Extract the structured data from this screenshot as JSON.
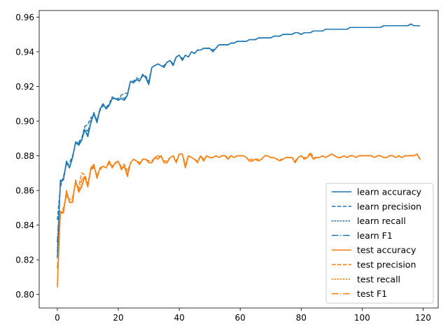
{
  "chart_data": {
    "type": "line",
    "title": "",
    "xlabel": "",
    "ylabel": "",
    "xlim": [
      -5.95,
      124.95
    ],
    "ylim": [
      0.7922,
      0.9638
    ],
    "xticks": [
      0,
      20,
      40,
      60,
      80,
      100,
      120
    ],
    "yticks": [
      0.8,
      0.82,
      0.84,
      0.86,
      0.88,
      0.9,
      0.92,
      0.94,
      0.96
    ],
    "xtick_labels": [
      "0",
      "20",
      "40",
      "60",
      "80",
      "100",
      "120"
    ],
    "ytick_labels": [
      "0.80",
      "0.82",
      "0.84",
      "0.86",
      "0.88",
      "0.90",
      "0.92",
      "0.94",
      "0.96"
    ],
    "grid": false,
    "legend_position": "lower-right",
    "x": [
      0,
      1,
      2,
      3,
      4,
      5,
      6,
      7,
      8,
      9,
      10,
      11,
      12,
      13,
      14,
      15,
      16,
      17,
      18,
      19,
      20,
      21,
      22,
      23,
      24,
      25,
      26,
      27,
      28,
      29,
      30,
      31,
      32,
      33,
      34,
      35,
      36,
      37,
      38,
      39,
      40,
      41,
      42,
      43,
      44,
      45,
      46,
      47,
      48,
      49,
      50,
      51,
      52,
      53,
      54,
      55,
      56,
      57,
      58,
      59,
      60,
      61,
      62,
      63,
      64,
      65,
      66,
      67,
      68,
      69,
      70,
      71,
      72,
      73,
      74,
      75,
      76,
      77,
      78,
      79,
      80,
      81,
      82,
      83,
      84,
      85,
      86,
      87,
      88,
      89,
      90,
      91,
      92,
      93,
      94,
      95,
      96,
      97,
      98,
      99,
      100,
      101,
      102,
      103,
      104,
      105,
      106,
      107,
      108,
      109,
      110,
      111,
      112,
      113,
      114,
      115,
      116,
      117,
      118,
      119
    ],
    "series": [
      {
        "name": "learn accuracy",
        "color": "#1f77b4",
        "linestyle": "solid",
        "values": [
          0.821,
          0.866,
          0.866,
          0.877,
          0.873,
          0.879,
          0.888,
          0.886,
          0.889,
          0.895,
          0.891,
          0.899,
          0.905,
          0.899,
          0.907,
          0.91,
          0.907,
          0.909,
          0.913,
          0.913,
          0.912,
          0.913,
          0.912,
          0.915,
          0.923,
          0.922,
          0.924,
          0.923,
          0.927,
          0.925,
          0.921,
          0.931,
          0.932,
          0.933,
          0.932,
          0.931,
          0.934,
          0.935,
          0.932,
          0.937,
          0.938,
          0.935,
          0.938,
          0.937,
          0.94,
          0.939,
          0.941,
          0.941,
          0.942,
          0.942,
          0.942,
          0.94,
          0.942,
          0.944,
          0.944,
          0.944,
          0.944,
          0.945,
          0.945,
          0.946,
          0.946,
          0.946,
          0.946,
          0.947,
          0.947,
          0.947,
          0.948,
          0.948,
          0.948,
          0.948,
          0.948,
          0.949,
          0.949,
          0.949,
          0.95,
          0.95,
          0.95,
          0.95,
          0.951,
          0.951,
          0.95,
          0.951,
          0.951,
          0.951,
          0.952,
          0.952,
          0.952,
          0.952,
          0.953,
          0.953,
          0.953,
          0.953,
          0.953,
          0.953,
          0.953,
          0.953,
          0.954,
          0.954,
          0.954,
          0.954,
          0.954,
          0.954,
          0.954,
          0.954,
          0.954,
          0.954,
          0.954,
          0.955,
          0.955,
          0.955,
          0.955,
          0.955,
          0.955,
          0.955,
          0.955,
          0.955,
          0.956,
          0.955,
          0.955,
          0.955
        ]
      },
      {
        "name": "learn precision",
        "color": "#1f77b4",
        "linestyle": "dashed",
        "values": [
          0.843,
          0.862,
          0.868,
          0.875,
          0.876,
          0.88,
          0.887,
          0.888,
          0.89,
          0.897,
          0.898,
          0.902,
          0.903,
          0.901,
          0.906,
          0.909,
          0.908,
          0.91,
          0.914,
          0.913,
          0.913,
          0.915,
          0.916,
          0.916,
          0.923,
          0.923,
          0.925,
          0.924,
          0.926,
          0.926,
          0.923,
          0.931,
          0.932,
          0.933,
          0.932,
          0.932,
          0.934,
          0.935,
          0.933,
          0.937,
          0.938,
          0.936,
          0.938,
          0.937,
          0.94,
          0.939,
          0.941,
          0.941,
          0.942,
          0.942,
          0.942,
          0.941,
          0.942,
          0.944,
          0.944,
          0.944,
          0.944,
          0.945,
          0.945,
          0.946,
          0.946,
          0.946,
          0.946,
          0.947,
          0.947,
          0.947,
          0.948,
          0.948,
          0.948,
          0.948,
          0.948,
          0.949,
          0.949,
          0.949,
          0.95,
          0.95,
          0.95,
          0.95,
          0.951,
          0.951,
          0.95,
          0.951,
          0.951,
          0.951,
          0.952,
          0.952,
          0.952,
          0.952,
          0.953,
          0.953,
          0.953,
          0.953,
          0.953,
          0.953,
          0.953,
          0.953,
          0.954,
          0.954,
          0.954,
          0.954,
          0.954,
          0.954,
          0.954,
          0.954,
          0.954,
          0.954,
          0.954,
          0.955,
          0.955,
          0.955,
          0.955,
          0.955,
          0.955,
          0.955,
          0.955,
          0.955,
          0.956,
          0.955,
          0.955,
          0.955
        ]
      },
      {
        "name": "learn recall",
        "color": "#1f77b4",
        "linestyle": "dotted",
        "values": [
          0.825,
          0.865,
          0.866,
          0.876,
          0.873,
          0.879,
          0.888,
          0.886,
          0.889,
          0.895,
          0.892,
          0.899,
          0.904,
          0.899,
          0.907,
          0.91,
          0.907,
          0.909,
          0.913,
          0.913,
          0.912,
          0.913,
          0.912,
          0.915,
          0.923,
          0.922,
          0.924,
          0.923,
          0.927,
          0.925,
          0.921,
          0.931,
          0.932,
          0.933,
          0.932,
          0.931,
          0.934,
          0.935,
          0.932,
          0.937,
          0.938,
          0.935,
          0.938,
          0.937,
          0.94,
          0.939,
          0.941,
          0.941,
          0.942,
          0.942,
          0.942,
          0.94,
          0.942,
          0.944,
          0.944,
          0.944,
          0.944,
          0.945,
          0.945,
          0.946,
          0.946,
          0.946,
          0.946,
          0.947,
          0.947,
          0.947,
          0.948,
          0.948,
          0.948,
          0.948,
          0.948,
          0.949,
          0.949,
          0.949,
          0.95,
          0.95,
          0.95,
          0.95,
          0.951,
          0.951,
          0.95,
          0.951,
          0.951,
          0.951,
          0.952,
          0.952,
          0.952,
          0.952,
          0.953,
          0.953,
          0.953,
          0.953,
          0.953,
          0.953,
          0.953,
          0.953,
          0.954,
          0.954,
          0.954,
          0.954,
          0.954,
          0.954,
          0.954,
          0.954,
          0.954,
          0.954,
          0.954,
          0.955,
          0.955,
          0.955,
          0.955,
          0.955,
          0.955,
          0.955,
          0.955,
          0.955,
          0.956,
          0.955,
          0.955,
          0.955
        ]
      },
      {
        "name": "learn F1",
        "color": "#1f77b4",
        "linestyle": "dashdot",
        "values": [
          0.83,
          0.864,
          0.867,
          0.876,
          0.874,
          0.879,
          0.888,
          0.887,
          0.889,
          0.896,
          0.894,
          0.9,
          0.904,
          0.9,
          0.907,
          0.91,
          0.907,
          0.909,
          0.913,
          0.913,
          0.912,
          0.914,
          0.913,
          0.915,
          0.923,
          0.922,
          0.924,
          0.923,
          0.927,
          0.925,
          0.922,
          0.931,
          0.932,
          0.933,
          0.932,
          0.931,
          0.934,
          0.935,
          0.932,
          0.937,
          0.938,
          0.935,
          0.938,
          0.937,
          0.94,
          0.939,
          0.941,
          0.941,
          0.942,
          0.942,
          0.942,
          0.94,
          0.942,
          0.944,
          0.944,
          0.944,
          0.944,
          0.945,
          0.945,
          0.946,
          0.946,
          0.946,
          0.946,
          0.947,
          0.947,
          0.947,
          0.948,
          0.948,
          0.948,
          0.948,
          0.948,
          0.949,
          0.949,
          0.949,
          0.95,
          0.95,
          0.95,
          0.95,
          0.951,
          0.951,
          0.95,
          0.951,
          0.951,
          0.951,
          0.952,
          0.952,
          0.952,
          0.952,
          0.953,
          0.953,
          0.953,
          0.953,
          0.953,
          0.953,
          0.953,
          0.953,
          0.954,
          0.954,
          0.954,
          0.954,
          0.954,
          0.954,
          0.954,
          0.954,
          0.954,
          0.954,
          0.954,
          0.955,
          0.955,
          0.955,
          0.955,
          0.955,
          0.955,
          0.955,
          0.955,
          0.955,
          0.956,
          0.955,
          0.955,
          0.955
        ]
      },
      {
        "name": "test accuracy",
        "color": "#ff7f0e",
        "linestyle": "solid",
        "values": [
          0.804,
          0.848,
          0.847,
          0.86,
          0.853,
          0.853,
          0.866,
          0.859,
          0.862,
          0.868,
          0.862,
          0.873,
          0.875,
          0.867,
          0.873,
          0.874,
          0.873,
          0.877,
          0.873,
          0.876,
          0.877,
          0.872,
          0.874,
          0.868,
          0.876,
          0.878,
          0.877,
          0.875,
          0.878,
          0.878,
          0.876,
          0.876,
          0.879,
          0.878,
          0.88,
          0.876,
          0.876,
          0.879,
          0.88,
          0.876,
          0.881,
          0.881,
          0.873,
          0.88,
          0.879,
          0.878,
          0.876,
          0.88,
          0.877,
          0.88,
          0.879,
          0.879,
          0.88,
          0.879,
          0.88,
          0.88,
          0.878,
          0.88,
          0.879,
          0.88,
          0.88,
          0.88,
          0.879,
          0.877,
          0.877,
          0.878,
          0.877,
          0.878,
          0.88,
          0.88,
          0.879,
          0.879,
          0.878,
          0.877,
          0.878,
          0.879,
          0.879,
          0.879,
          0.876,
          0.879,
          0.88,
          0.878,
          0.879,
          0.881,
          0.878,
          0.879,
          0.879,
          0.88,
          0.879,
          0.88,
          0.881,
          0.88,
          0.879,
          0.879,
          0.88,
          0.879,
          0.88,
          0.88,
          0.879,
          0.88,
          0.88,
          0.88,
          0.88,
          0.88,
          0.879,
          0.88,
          0.88,
          0.879,
          0.879,
          0.88,
          0.88,
          0.879,
          0.88,
          0.879,
          0.88,
          0.88,
          0.88,
          0.88,
          0.881,
          0.878
        ]
      },
      {
        "name": "test precision",
        "color": "#ff7f0e",
        "linestyle": "dashed",
        "values": [
          0.83,
          0.846,
          0.85,
          0.857,
          0.855,
          0.856,
          0.864,
          0.862,
          0.87,
          0.869,
          0.864,
          0.872,
          0.873,
          0.869,
          0.872,
          0.874,
          0.873,
          0.876,
          0.874,
          0.876,
          0.876,
          0.874,
          0.875,
          0.871,
          0.876,
          0.878,
          0.877,
          0.876,
          0.878,
          0.878,
          0.877,
          0.877,
          0.879,
          0.88,
          0.88,
          0.877,
          0.877,
          0.879,
          0.88,
          0.877,
          0.881,
          0.881,
          0.875,
          0.88,
          0.879,
          0.878,
          0.877,
          0.88,
          0.878,
          0.88,
          0.879,
          0.879,
          0.88,
          0.879,
          0.88,
          0.88,
          0.879,
          0.88,
          0.879,
          0.88,
          0.88,
          0.88,
          0.879,
          0.878,
          0.878,
          0.878,
          0.878,
          0.878,
          0.88,
          0.88,
          0.879,
          0.879,
          0.878,
          0.878,
          0.878,
          0.879,
          0.879,
          0.879,
          0.877,
          0.879,
          0.88,
          0.879,
          0.879,
          0.882,
          0.879,
          0.879,
          0.879,
          0.88,
          0.879,
          0.88,
          0.881,
          0.88,
          0.879,
          0.879,
          0.88,
          0.879,
          0.88,
          0.88,
          0.879,
          0.88,
          0.88,
          0.88,
          0.88,
          0.88,
          0.879,
          0.88,
          0.88,
          0.879,
          0.879,
          0.88,
          0.88,
          0.879,
          0.88,
          0.879,
          0.88,
          0.88,
          0.88,
          0.88,
          0.881,
          0.878
        ]
      },
      {
        "name": "test recall",
        "color": "#ff7f0e",
        "linestyle": "dotted",
        "values": [
          0.806,
          0.847,
          0.847,
          0.859,
          0.853,
          0.854,
          0.866,
          0.859,
          0.863,
          0.868,
          0.862,
          0.873,
          0.875,
          0.867,
          0.873,
          0.874,
          0.873,
          0.877,
          0.873,
          0.876,
          0.877,
          0.872,
          0.874,
          0.868,
          0.876,
          0.878,
          0.877,
          0.875,
          0.878,
          0.878,
          0.876,
          0.876,
          0.879,
          0.878,
          0.88,
          0.876,
          0.876,
          0.879,
          0.88,
          0.876,
          0.881,
          0.881,
          0.873,
          0.88,
          0.879,
          0.878,
          0.876,
          0.88,
          0.877,
          0.88,
          0.879,
          0.879,
          0.88,
          0.879,
          0.88,
          0.88,
          0.878,
          0.88,
          0.879,
          0.88,
          0.88,
          0.88,
          0.879,
          0.877,
          0.877,
          0.878,
          0.877,
          0.878,
          0.88,
          0.88,
          0.879,
          0.879,
          0.878,
          0.877,
          0.878,
          0.879,
          0.879,
          0.879,
          0.876,
          0.879,
          0.88,
          0.878,
          0.879,
          0.881,
          0.878,
          0.879,
          0.879,
          0.88,
          0.879,
          0.88,
          0.881,
          0.88,
          0.879,
          0.879,
          0.88,
          0.879,
          0.88,
          0.88,
          0.879,
          0.88,
          0.88,
          0.88,
          0.88,
          0.88,
          0.879,
          0.88,
          0.88,
          0.879,
          0.879,
          0.88,
          0.88,
          0.879,
          0.88,
          0.879,
          0.88,
          0.88,
          0.88,
          0.88,
          0.881,
          0.878
        ]
      },
      {
        "name": "test F1",
        "color": "#ff7f0e",
        "linestyle": "dashdot",
        "values": [
          0.815,
          0.847,
          0.848,
          0.858,
          0.854,
          0.855,
          0.865,
          0.86,
          0.866,
          0.868,
          0.863,
          0.872,
          0.874,
          0.868,
          0.873,
          0.874,
          0.873,
          0.876,
          0.873,
          0.876,
          0.876,
          0.873,
          0.874,
          0.869,
          0.876,
          0.878,
          0.877,
          0.875,
          0.878,
          0.878,
          0.876,
          0.876,
          0.879,
          0.879,
          0.88,
          0.876,
          0.876,
          0.879,
          0.88,
          0.876,
          0.881,
          0.881,
          0.874,
          0.88,
          0.879,
          0.878,
          0.876,
          0.88,
          0.877,
          0.88,
          0.879,
          0.879,
          0.88,
          0.879,
          0.88,
          0.88,
          0.878,
          0.88,
          0.879,
          0.88,
          0.88,
          0.88,
          0.879,
          0.877,
          0.877,
          0.878,
          0.877,
          0.878,
          0.88,
          0.88,
          0.879,
          0.879,
          0.878,
          0.877,
          0.878,
          0.879,
          0.879,
          0.879,
          0.876,
          0.879,
          0.88,
          0.878,
          0.879,
          0.881,
          0.878,
          0.879,
          0.879,
          0.88,
          0.879,
          0.88,
          0.881,
          0.88,
          0.879,
          0.879,
          0.88,
          0.879,
          0.88,
          0.88,
          0.879,
          0.88,
          0.88,
          0.88,
          0.88,
          0.88,
          0.879,
          0.88,
          0.88,
          0.879,
          0.879,
          0.88,
          0.88,
          0.879,
          0.88,
          0.879,
          0.88,
          0.88,
          0.88,
          0.88,
          0.881,
          0.878
        ]
      }
    ]
  }
}
